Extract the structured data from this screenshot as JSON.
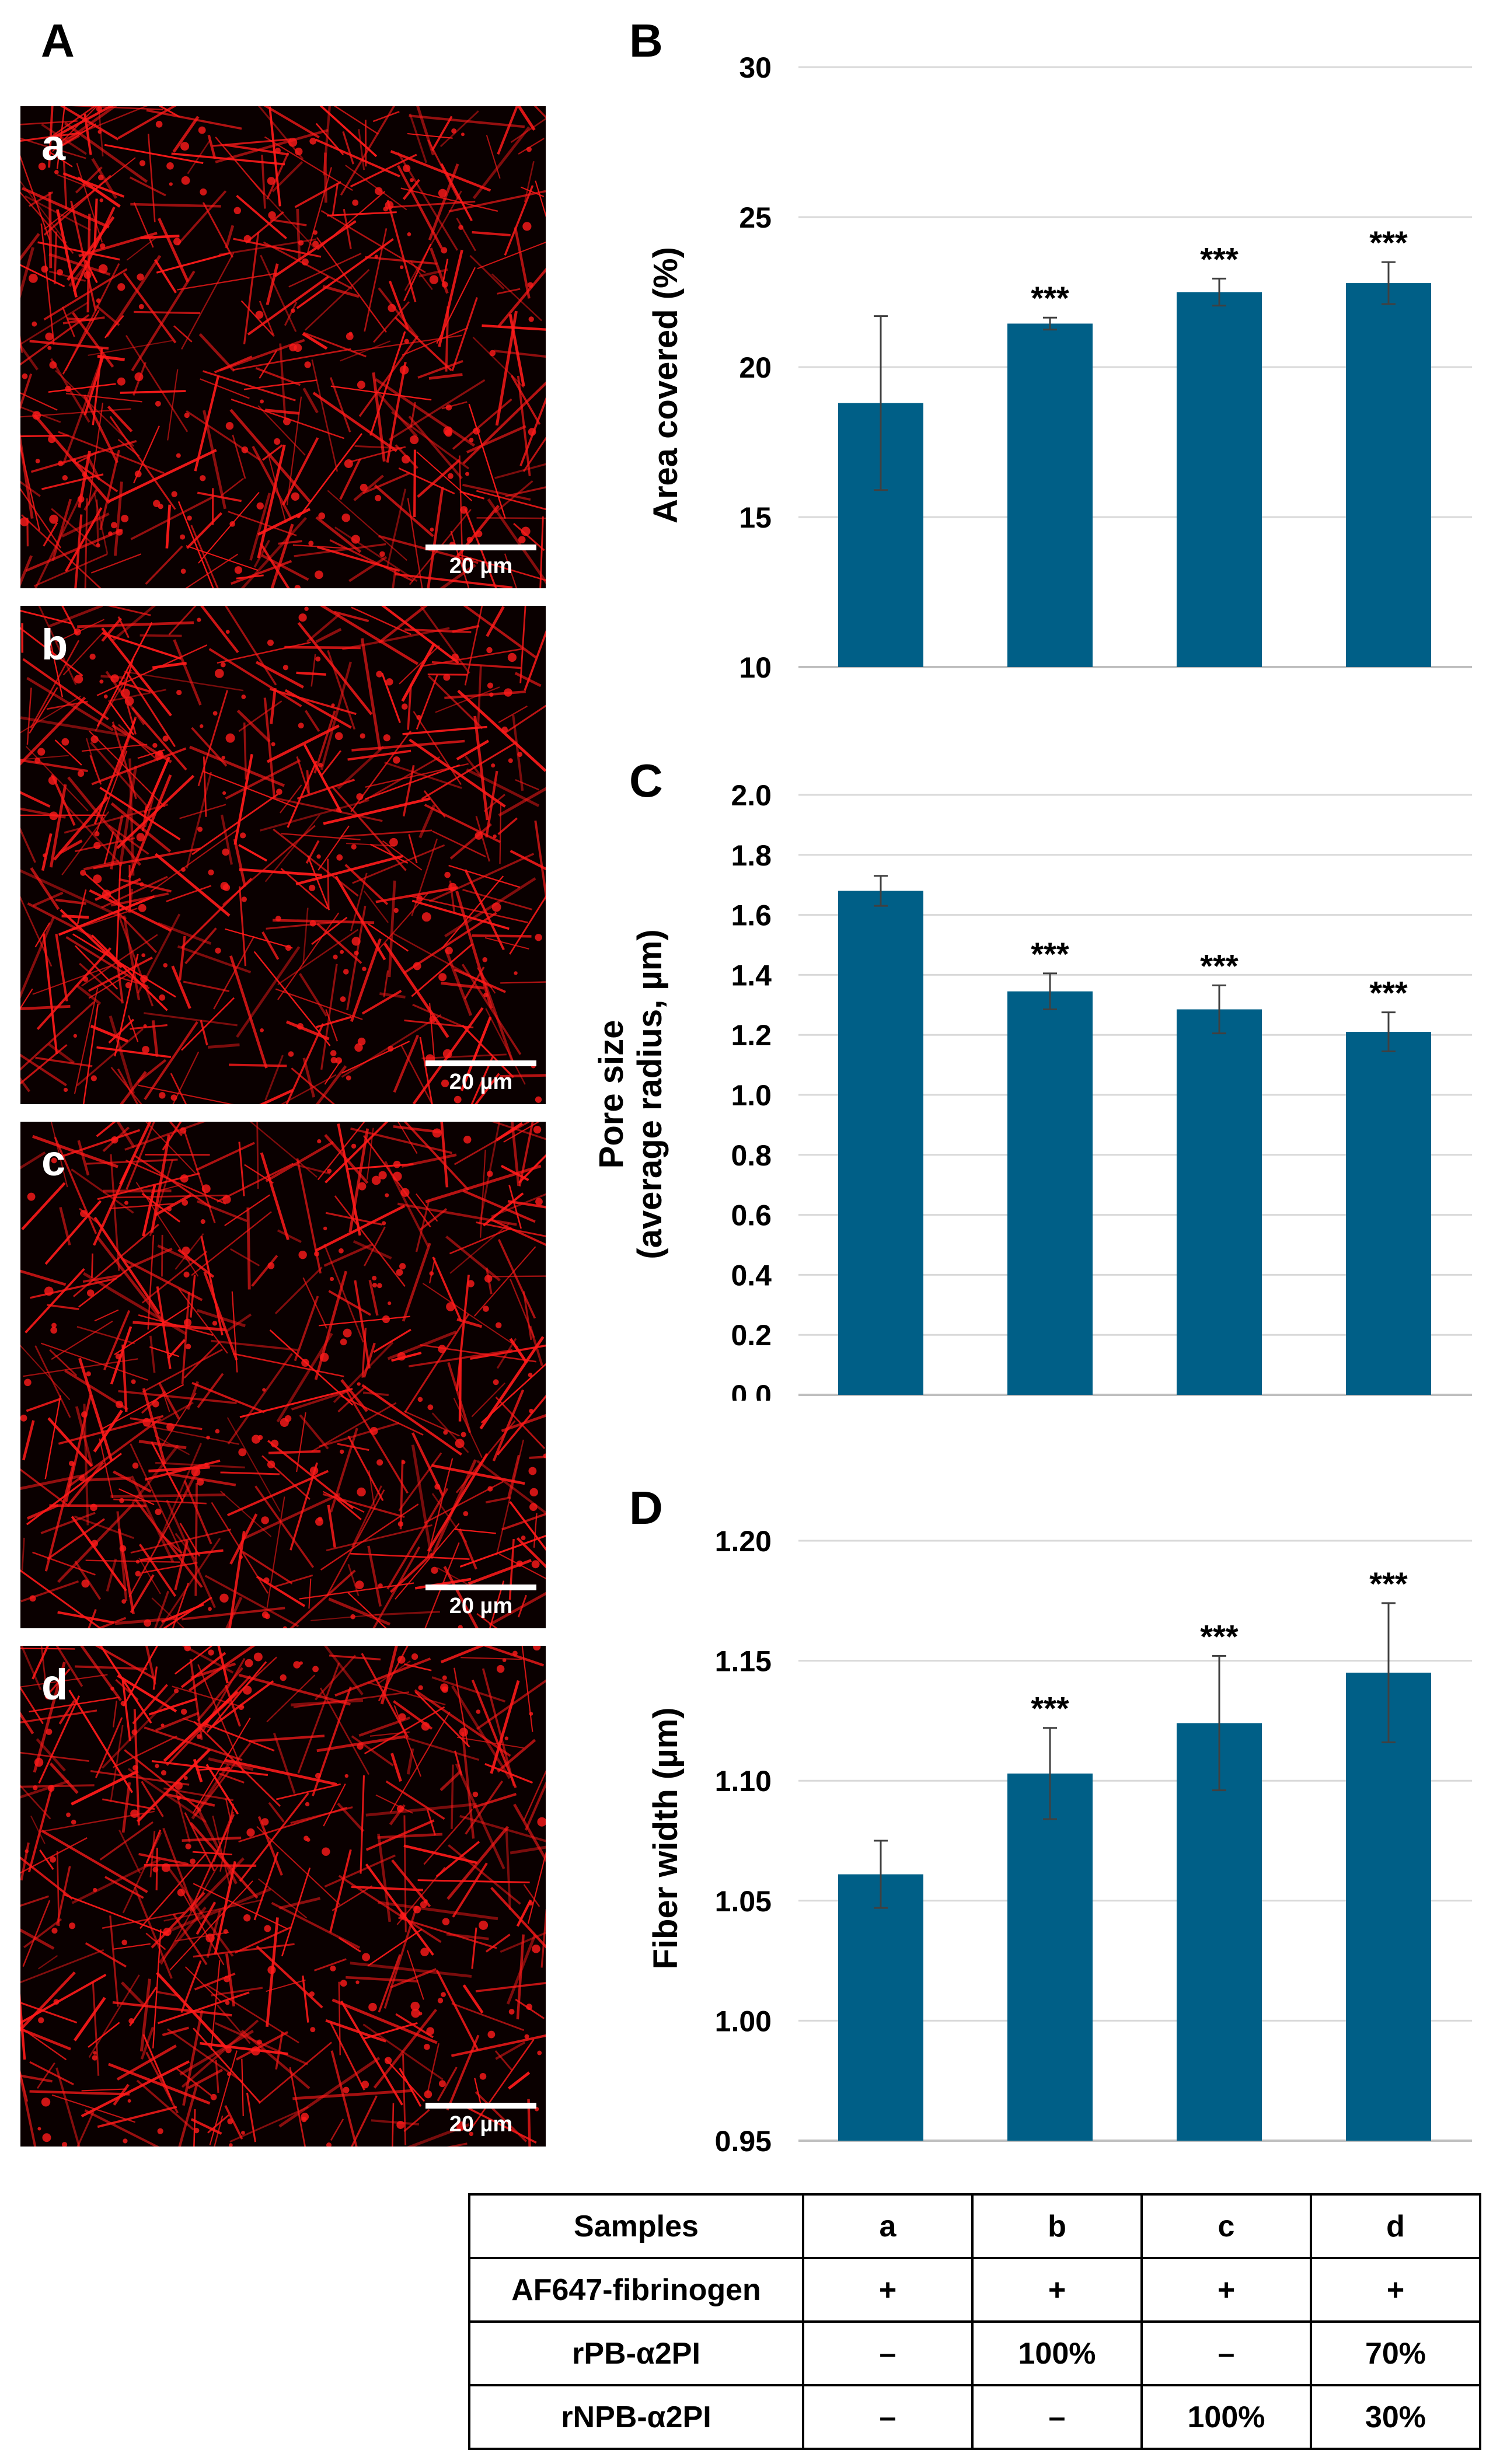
{
  "panels": {
    "A": "A",
    "B": "B",
    "C": "C",
    "D": "D"
  },
  "micrographs": [
    {
      "sub": "a",
      "scale": "20 µm"
    },
    {
      "sub": "b",
      "scale": "20 µm"
    },
    {
      "sub": "c",
      "scale": "20 µm"
    },
    {
      "sub": "d",
      "scale": "20 µm"
    }
  ],
  "colors": {
    "bar": "#005f87",
    "fiber": "#ff1a1a",
    "micro_bg": "#0a0000",
    "grid": "#d9d9d9"
  },
  "chart_data": [
    {
      "type": "bar",
      "panel": "B",
      "categories": [
        "a",
        "b",
        "c",
        "d"
      ],
      "values": [
        18.8,
        21.45,
        22.5,
        22.8
      ],
      "errors": [
        2.9,
        0.2,
        0.45,
        0.7
      ],
      "annotations": [
        "",
        "***",
        "***",
        "***"
      ],
      "ylabel": "Area covered (%)",
      "ylim": [
        10,
        30
      ],
      "yticks": [
        "10",
        "15",
        "20",
        "25",
        "30"
      ],
      "grid": true
    },
    {
      "type": "bar",
      "panel": "C",
      "categories": [
        "a",
        "b",
        "c",
        "d"
      ],
      "values": [
        1.68,
        1.345,
        1.285,
        1.21
      ],
      "errors": [
        0.05,
        0.06,
        0.08,
        0.065
      ],
      "annotations": [
        "",
        "***",
        "***",
        "***"
      ],
      "ylabel": [
        "Pore size",
        "(average radius, µm)"
      ],
      "ylim": [
        0.0,
        2.0
      ],
      "yticks": [
        "0.0",
        "0.2",
        "0.4",
        "0.6",
        "0.8",
        "1.0",
        "1.2",
        "1.4",
        "1.6",
        "1.8",
        "2.0"
      ],
      "grid": true
    },
    {
      "type": "bar",
      "panel": "D",
      "categories": [
        "a",
        "b",
        "c",
        "d"
      ],
      "values": [
        1.061,
        1.103,
        1.124,
        1.145
      ],
      "errors": [
        0.014,
        0.019,
        0.028,
        0.029
      ],
      "annotations": [
        "",
        "***",
        "***",
        "***"
      ],
      "ylabel": "Fiber width (µm)",
      "ylim": [
        0.95,
        1.2
      ],
      "yticks": [
        "0.95",
        "1.00",
        "1.05",
        "1.10",
        "1.15",
        "1.20"
      ],
      "grid": true
    }
  ],
  "table": {
    "header": [
      "Samples",
      "a",
      "b",
      "c",
      "d"
    ],
    "rows": [
      [
        "AF647-fibrinogen",
        "+",
        "+",
        "+",
        "+"
      ],
      [
        "rPB-α2PI",
        "–",
        "100%",
        "–",
        "70%"
      ],
      [
        "rNPB-α2PI",
        "–",
        "–",
        "100%",
        "30%"
      ]
    ]
  }
}
